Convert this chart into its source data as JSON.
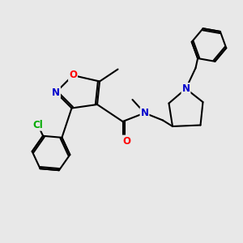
{
  "background_color": "#e8e8e8",
  "bond_color": "#000000",
  "bond_width": 1.5,
  "atom_colors": {
    "N": "#0000cc",
    "O": "#ff0000",
    "Cl": "#00aa00",
    "C": "#000000"
  },
  "font_size_atom": 8.5,
  "title": ""
}
